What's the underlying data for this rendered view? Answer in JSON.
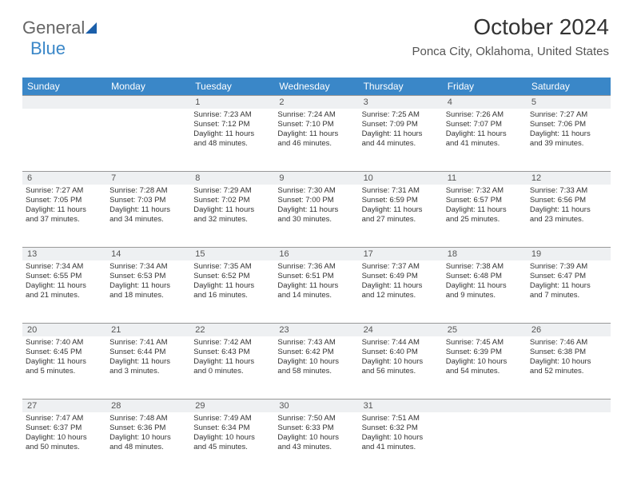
{
  "logo": {
    "part1": "General",
    "part2": "Blue"
  },
  "title": "October 2024",
  "location": "Ponca City, Oklahoma, United States",
  "colors": {
    "header_bg": "#3a87c8",
    "header_text": "#ffffff",
    "daynum_bg": "#eef0f2",
    "border": "#999999",
    "text": "#333333",
    "logo_gray": "#666666",
    "logo_blue": "#3a87c8"
  },
  "day_headers": [
    "Sunday",
    "Monday",
    "Tuesday",
    "Wednesday",
    "Thursday",
    "Friday",
    "Saturday"
  ],
  "weeks": [
    {
      "nums": [
        "",
        "",
        "1",
        "2",
        "3",
        "4",
        "5"
      ],
      "cells": [
        null,
        null,
        {
          "sunrise": "Sunrise: 7:23 AM",
          "sunset": "Sunset: 7:12 PM",
          "dl1": "Daylight: 11 hours",
          "dl2": "and 48 minutes."
        },
        {
          "sunrise": "Sunrise: 7:24 AM",
          "sunset": "Sunset: 7:10 PM",
          "dl1": "Daylight: 11 hours",
          "dl2": "and 46 minutes."
        },
        {
          "sunrise": "Sunrise: 7:25 AM",
          "sunset": "Sunset: 7:09 PM",
          "dl1": "Daylight: 11 hours",
          "dl2": "and 44 minutes."
        },
        {
          "sunrise": "Sunrise: 7:26 AM",
          "sunset": "Sunset: 7:07 PM",
          "dl1": "Daylight: 11 hours",
          "dl2": "and 41 minutes."
        },
        {
          "sunrise": "Sunrise: 7:27 AM",
          "sunset": "Sunset: 7:06 PM",
          "dl1": "Daylight: 11 hours",
          "dl2": "and 39 minutes."
        }
      ]
    },
    {
      "nums": [
        "6",
        "7",
        "8",
        "9",
        "10",
        "11",
        "12"
      ],
      "cells": [
        {
          "sunrise": "Sunrise: 7:27 AM",
          "sunset": "Sunset: 7:05 PM",
          "dl1": "Daylight: 11 hours",
          "dl2": "and 37 minutes."
        },
        {
          "sunrise": "Sunrise: 7:28 AM",
          "sunset": "Sunset: 7:03 PM",
          "dl1": "Daylight: 11 hours",
          "dl2": "and 34 minutes."
        },
        {
          "sunrise": "Sunrise: 7:29 AM",
          "sunset": "Sunset: 7:02 PM",
          "dl1": "Daylight: 11 hours",
          "dl2": "and 32 minutes."
        },
        {
          "sunrise": "Sunrise: 7:30 AM",
          "sunset": "Sunset: 7:00 PM",
          "dl1": "Daylight: 11 hours",
          "dl2": "and 30 minutes."
        },
        {
          "sunrise": "Sunrise: 7:31 AM",
          "sunset": "Sunset: 6:59 PM",
          "dl1": "Daylight: 11 hours",
          "dl2": "and 27 minutes."
        },
        {
          "sunrise": "Sunrise: 7:32 AM",
          "sunset": "Sunset: 6:57 PM",
          "dl1": "Daylight: 11 hours",
          "dl2": "and 25 minutes."
        },
        {
          "sunrise": "Sunrise: 7:33 AM",
          "sunset": "Sunset: 6:56 PM",
          "dl1": "Daylight: 11 hours",
          "dl2": "and 23 minutes."
        }
      ]
    },
    {
      "nums": [
        "13",
        "14",
        "15",
        "16",
        "17",
        "18",
        "19"
      ],
      "cells": [
        {
          "sunrise": "Sunrise: 7:34 AM",
          "sunset": "Sunset: 6:55 PM",
          "dl1": "Daylight: 11 hours",
          "dl2": "and 21 minutes."
        },
        {
          "sunrise": "Sunrise: 7:34 AM",
          "sunset": "Sunset: 6:53 PM",
          "dl1": "Daylight: 11 hours",
          "dl2": "and 18 minutes."
        },
        {
          "sunrise": "Sunrise: 7:35 AM",
          "sunset": "Sunset: 6:52 PM",
          "dl1": "Daylight: 11 hours",
          "dl2": "and 16 minutes."
        },
        {
          "sunrise": "Sunrise: 7:36 AM",
          "sunset": "Sunset: 6:51 PM",
          "dl1": "Daylight: 11 hours",
          "dl2": "and 14 minutes."
        },
        {
          "sunrise": "Sunrise: 7:37 AM",
          "sunset": "Sunset: 6:49 PM",
          "dl1": "Daylight: 11 hours",
          "dl2": "and 12 minutes."
        },
        {
          "sunrise": "Sunrise: 7:38 AM",
          "sunset": "Sunset: 6:48 PM",
          "dl1": "Daylight: 11 hours",
          "dl2": "and 9 minutes."
        },
        {
          "sunrise": "Sunrise: 7:39 AM",
          "sunset": "Sunset: 6:47 PM",
          "dl1": "Daylight: 11 hours",
          "dl2": "and 7 minutes."
        }
      ]
    },
    {
      "nums": [
        "20",
        "21",
        "22",
        "23",
        "24",
        "25",
        "26"
      ],
      "cells": [
        {
          "sunrise": "Sunrise: 7:40 AM",
          "sunset": "Sunset: 6:45 PM",
          "dl1": "Daylight: 11 hours",
          "dl2": "and 5 minutes."
        },
        {
          "sunrise": "Sunrise: 7:41 AM",
          "sunset": "Sunset: 6:44 PM",
          "dl1": "Daylight: 11 hours",
          "dl2": "and 3 minutes."
        },
        {
          "sunrise": "Sunrise: 7:42 AM",
          "sunset": "Sunset: 6:43 PM",
          "dl1": "Daylight: 11 hours",
          "dl2": "and 0 minutes."
        },
        {
          "sunrise": "Sunrise: 7:43 AM",
          "sunset": "Sunset: 6:42 PM",
          "dl1": "Daylight: 10 hours",
          "dl2": "and 58 minutes."
        },
        {
          "sunrise": "Sunrise: 7:44 AM",
          "sunset": "Sunset: 6:40 PM",
          "dl1": "Daylight: 10 hours",
          "dl2": "and 56 minutes."
        },
        {
          "sunrise": "Sunrise: 7:45 AM",
          "sunset": "Sunset: 6:39 PM",
          "dl1": "Daylight: 10 hours",
          "dl2": "and 54 minutes."
        },
        {
          "sunrise": "Sunrise: 7:46 AM",
          "sunset": "Sunset: 6:38 PM",
          "dl1": "Daylight: 10 hours",
          "dl2": "and 52 minutes."
        }
      ]
    },
    {
      "nums": [
        "27",
        "28",
        "29",
        "30",
        "31",
        "",
        ""
      ],
      "cells": [
        {
          "sunrise": "Sunrise: 7:47 AM",
          "sunset": "Sunset: 6:37 PM",
          "dl1": "Daylight: 10 hours",
          "dl2": "and 50 minutes."
        },
        {
          "sunrise": "Sunrise: 7:48 AM",
          "sunset": "Sunset: 6:36 PM",
          "dl1": "Daylight: 10 hours",
          "dl2": "and 48 minutes."
        },
        {
          "sunrise": "Sunrise: 7:49 AM",
          "sunset": "Sunset: 6:34 PM",
          "dl1": "Daylight: 10 hours",
          "dl2": "and 45 minutes."
        },
        {
          "sunrise": "Sunrise: 7:50 AM",
          "sunset": "Sunset: 6:33 PM",
          "dl1": "Daylight: 10 hours",
          "dl2": "and 43 minutes."
        },
        {
          "sunrise": "Sunrise: 7:51 AM",
          "sunset": "Sunset: 6:32 PM",
          "dl1": "Daylight: 10 hours",
          "dl2": "and 41 minutes."
        },
        null,
        null
      ]
    }
  ]
}
